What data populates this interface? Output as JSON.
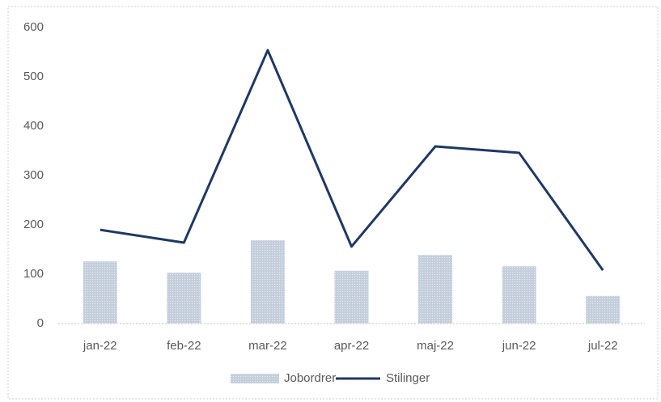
{
  "chart_data": {
    "type": "combo",
    "categories": [
      "jan-22",
      "feb-22",
      "mar-22",
      "apr-22",
      "maj-22",
      "jun-22",
      "jul-22"
    ],
    "series": [
      {
        "name": "Jobordrer",
        "type": "bar",
        "color": "#c5cfdc",
        "values": [
          126,
          103,
          169,
          107,
          139,
          116,
          56
        ]
      },
      {
        "name": "Stilinger",
        "type": "line",
        "color": "#1f3864",
        "values": [
          190,
          164,
          554,
          156,
          359,
          346,
          108
        ]
      }
    ],
    "ylim": [
      0,
      600
    ],
    "yticks": [
      0,
      100,
      200,
      300,
      400,
      500,
      600
    ],
    "grid": false,
    "legend": "bottom"
  }
}
